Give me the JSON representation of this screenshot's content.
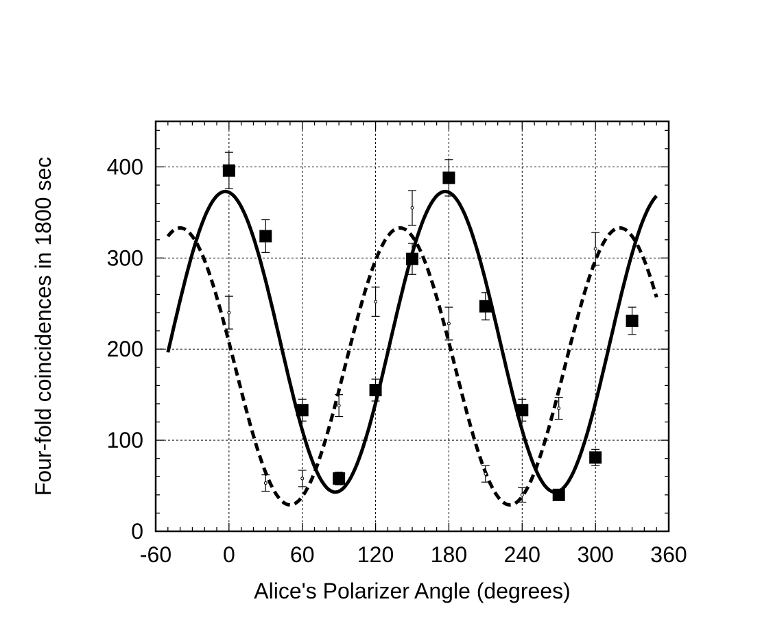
{
  "chart_data": {
    "type": "scatter",
    "title": "",
    "xlabel": "Alice's Polarizer Angle (degrees)",
    "ylabel": "Four-fold coincidences in 1800 sec",
    "xlim": [
      -60,
      360
    ],
    "ylim": [
      0,
      450
    ],
    "xticks": [
      -60,
      0,
      60,
      120,
      180,
      240,
      300,
      360
    ],
    "yticks": [
      0,
      100,
      200,
      300,
      400
    ],
    "grid": true,
    "series": [
      {
        "style": "squares-with-error-bars",
        "color": "#000000",
        "points": [
          {
            "x": 0,
            "y": 396,
            "err": 20
          },
          {
            "x": 30,
            "y": 324,
            "err": 18
          },
          {
            "x": 60,
            "y": 133,
            "err": 12
          },
          {
            "x": 90,
            "y": 58,
            "err": 7
          },
          {
            "x": 120,
            "y": 155,
            "err": 12
          },
          {
            "x": 150,
            "y": 299,
            "err": 17
          },
          {
            "x": 180,
            "y": 388,
            "err": 20
          },
          {
            "x": 210,
            "y": 247,
            "err": 15
          },
          {
            "x": 240,
            "y": 133,
            "err": 12
          },
          {
            "x": 270,
            "y": 40,
            "err": 6
          },
          {
            "x": 300,
            "y": 81,
            "err": 9
          },
          {
            "x": 330,
            "y": 231,
            "err": 15
          }
        ]
      },
      {
        "style": "open-points-with-error-bars",
        "color": "#000000",
        "points": [
          {
            "x": 0,
            "y": 240,
            "err": 18
          },
          {
            "x": 30,
            "y": 53,
            "err": 9
          },
          {
            "x": 60,
            "y": 58,
            "err": 9
          },
          {
            "x": 90,
            "y": 138,
            "err": 12
          },
          {
            "x": 120,
            "y": 252,
            "err": 16
          },
          {
            "x": 150,
            "y": 355,
            "err": 19
          },
          {
            "x": 180,
            "y": 228,
            "err": 18
          },
          {
            "x": 210,
            "y": 63,
            "err": 9
          },
          {
            "x": 240,
            "y": 40,
            "err": 8
          },
          {
            "x": 270,
            "y": 135,
            "err": 12
          },
          {
            "x": 300,
            "y": 310,
            "err": 18
          }
        ]
      },
      {
        "style": "solid-line",
        "color": "#000000",
        "fit": {
          "offset": 208,
          "amplitude": 165,
          "period": 180,
          "peak_x": -3
        },
        "x_range": [
          -50,
          350
        ]
      },
      {
        "style": "dashed-line",
        "color": "#000000",
        "fit": {
          "offset": 181,
          "amplitude": 152,
          "period": 180,
          "peak_x": 140
        },
        "x_range": [
          -50,
          350
        ]
      }
    ]
  }
}
